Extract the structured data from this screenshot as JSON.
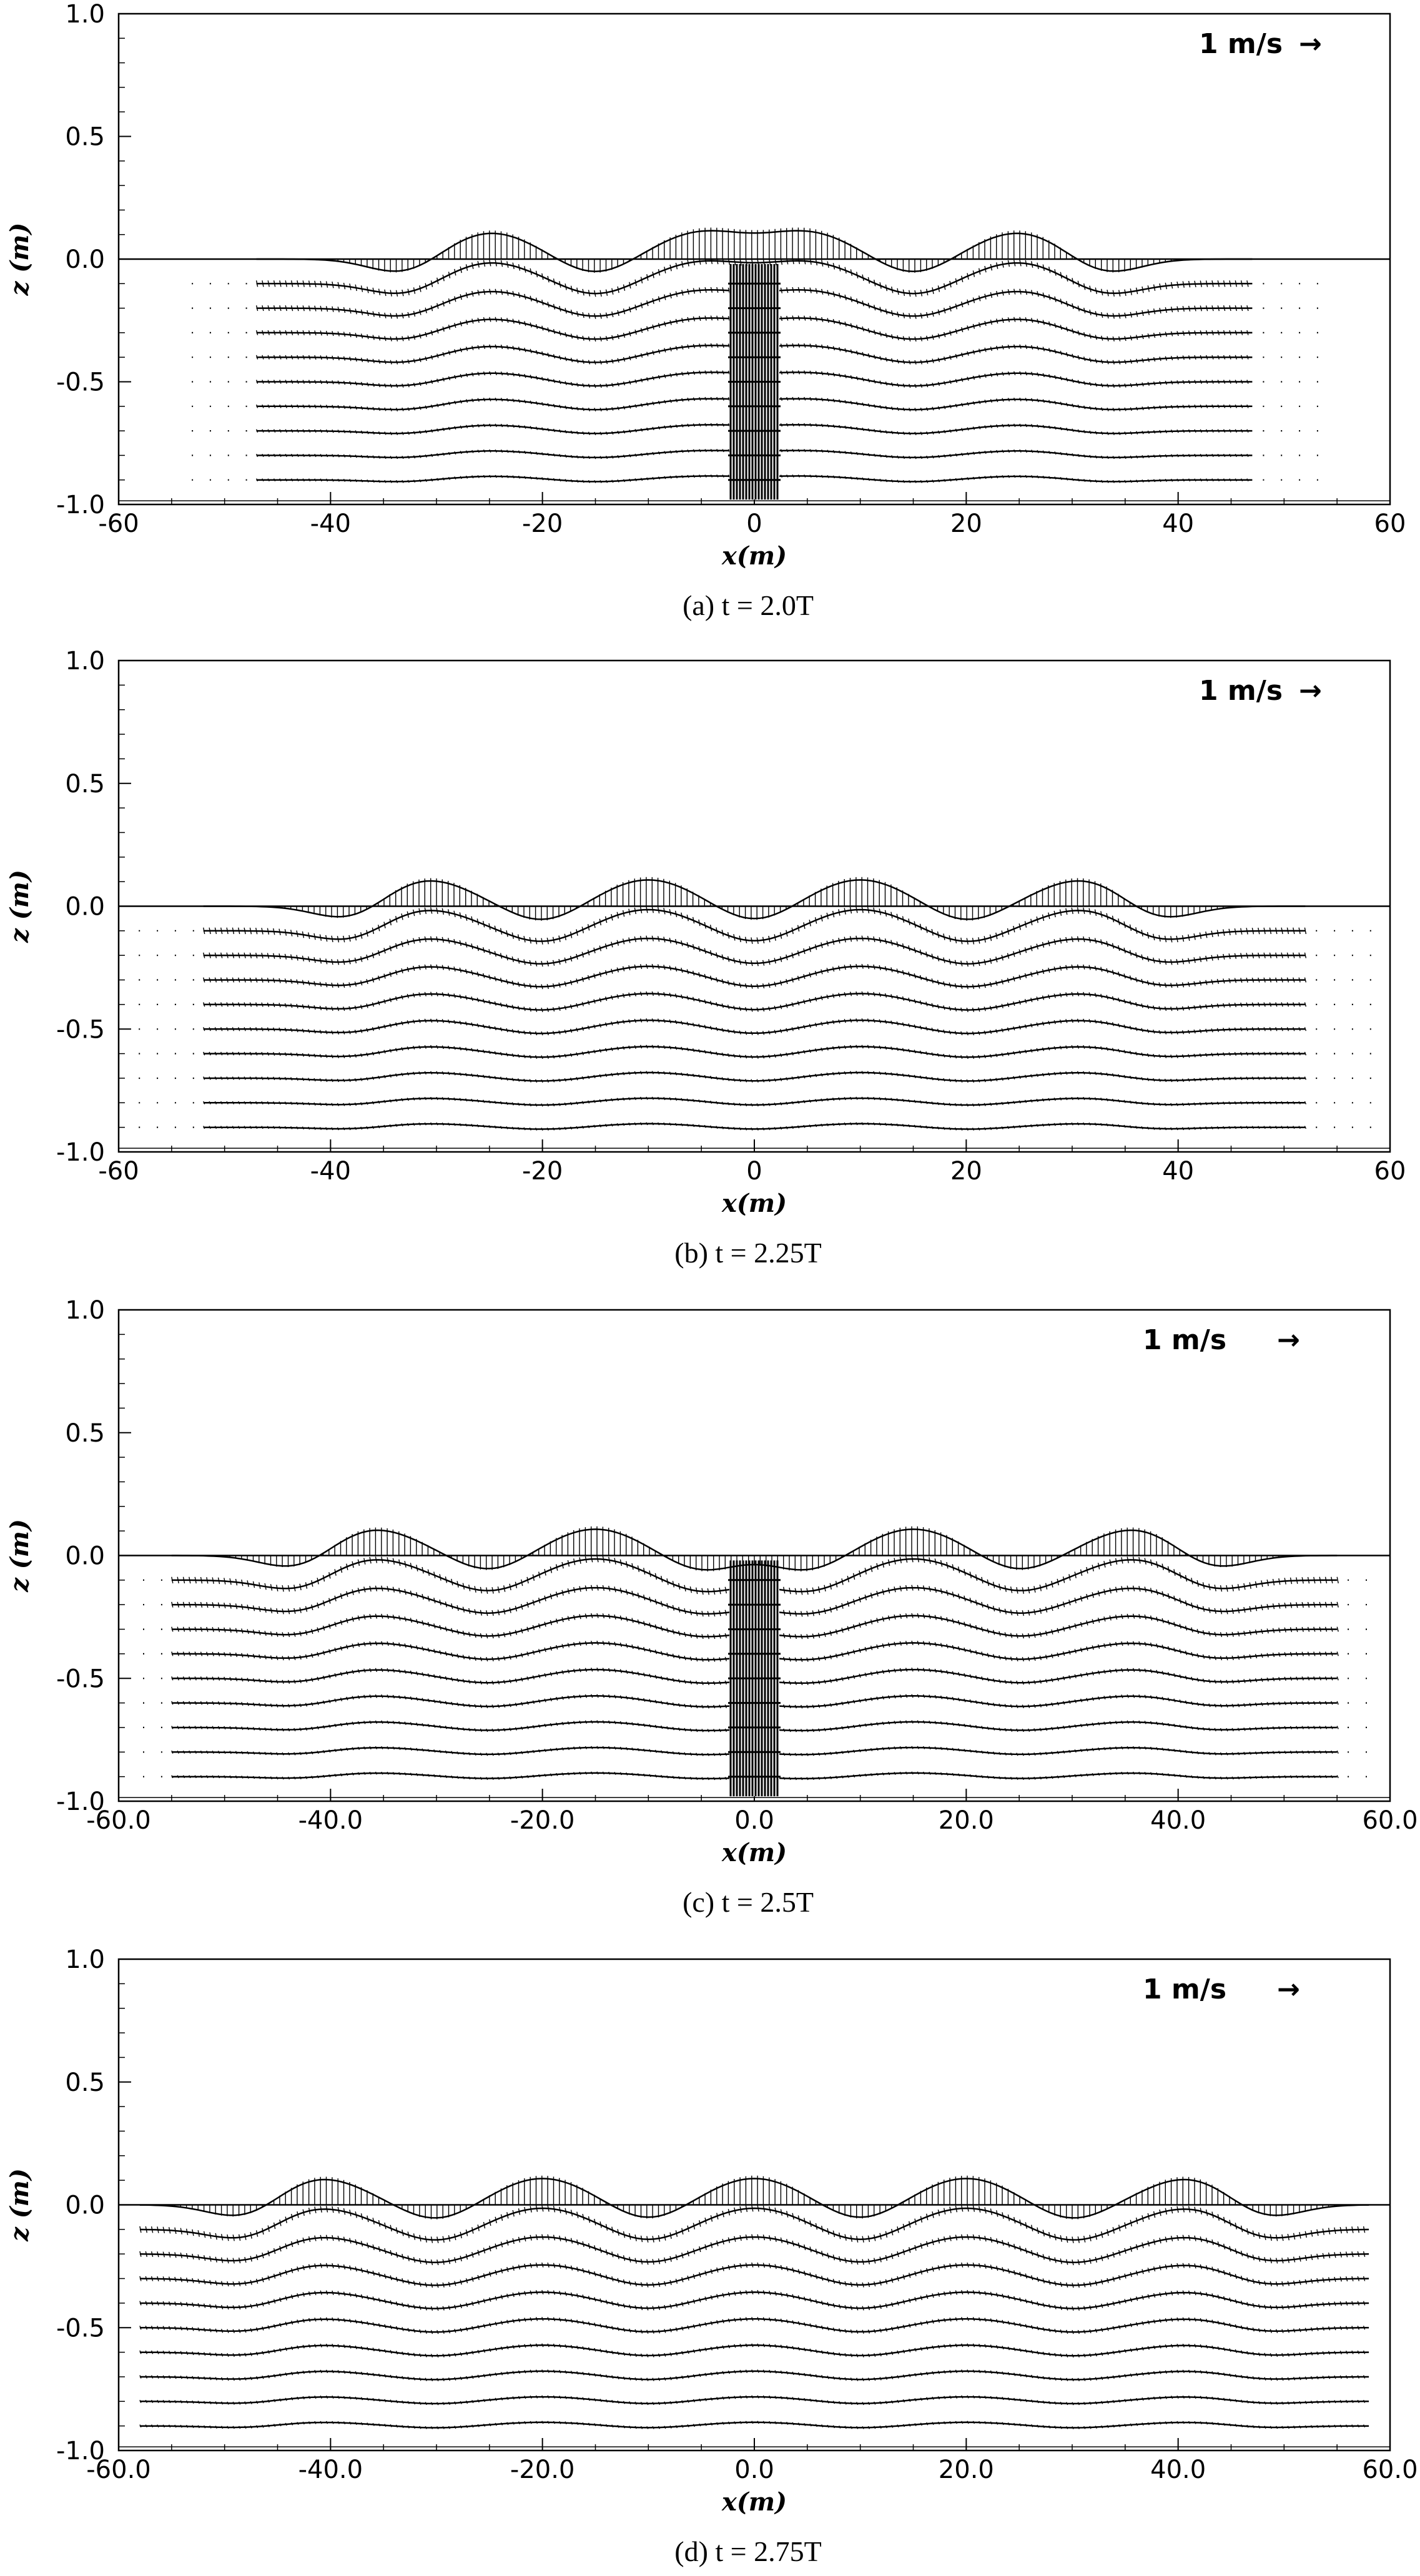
{
  "chart_data": [
    {
      "type": "scatter",
      "subplot": "vector-field",
      "caption": "(a)  t = 2.0T",
      "xlabel": "x(m)",
      "ylabel": "z (m)",
      "xlim": [
        -60,
        60
      ],
      "ylim": [
        -1.0,
        1.0
      ],
      "x_ticks": [
        "-60",
        "-40",
        "-20",
        "0",
        "20",
        "40",
        "60"
      ],
      "y_ticks": [
        "-1.0",
        "-0.5",
        "0.0",
        "0.5",
        "1.0"
      ],
      "scale_label": "1 m/s",
      "scale_arrow": "→",
      "crests_x": [
        -25,
        -5,
        5,
        25
      ],
      "troughs_x": [
        -33,
        -15,
        15,
        33
      ],
      "crest_height": 0.12,
      "wave_extent": [
        -47,
        47
      ],
      "central_jet_x": 0
    },
    {
      "type": "scatter",
      "subplot": "vector-field",
      "caption": "(b)  t = 2.25T",
      "xlabel": "x(m)",
      "ylabel": "z (m)",
      "xlim": [
        -60,
        60
      ],
      "ylim": [
        -1.0,
        1.0
      ],
      "x_ticks": [
        "-60",
        "-40",
        "-20",
        "0",
        "20",
        "40",
        "60"
      ],
      "y_ticks": [
        "-1.0",
        "-0.5",
        "0.0",
        "0.5",
        "1.0"
      ],
      "scale_label": "1 m/s",
      "scale_arrow": "→",
      "crests_x": [
        -31,
        -10,
        10,
        31
      ],
      "troughs_x": [
        -38,
        -20,
        0,
        20,
        38
      ],
      "crest_height": 0.12,
      "wave_extent": [
        -52,
        52
      ],
      "central_jet_x": null
    },
    {
      "type": "scatter",
      "subplot": "vector-field",
      "caption": "(c)  t = 2.5T",
      "xlabel": "x(m)",
      "ylabel": "z (m)",
      "xlim": [
        -60,
        60
      ],
      "ylim": [
        -1.0,
        1.0
      ],
      "x_ticks": [
        "-60.0",
        "-40.0",
        "-20.0",
        "0.0",
        "20.0",
        "40.0",
        "60.0"
      ],
      "y_ticks": [
        "-1.0",
        "-0.5",
        "0.0",
        "0.5",
        "1.0"
      ],
      "scale_label": "1 m/s",
      "scale_arrow": "→",
      "crests_x": [
        -36,
        -15,
        15,
        36
      ],
      "troughs_x": [
        -43,
        -25,
        -5,
        5,
        25,
        43
      ],
      "crest_height": 0.12,
      "wave_extent": [
        -55,
        55
      ],
      "central_jet_x": 0
    },
    {
      "type": "scatter",
      "subplot": "vector-field",
      "caption": "(d)  t = 2.75T",
      "xlabel": "x(m)",
      "ylabel": "z (m)",
      "xlim": [
        -60,
        60
      ],
      "ylim": [
        -1.0,
        1.0
      ],
      "x_ticks": [
        "-60.0",
        "-40.0",
        "-20.0",
        "0.0",
        "20.0",
        "40.0",
        "60.0"
      ],
      "y_ticks": [
        "-1.0",
        "-0.5",
        "0.0",
        "0.5",
        "1.0"
      ],
      "scale_label": "1 m/s",
      "scale_arrow": "→",
      "crests_x": [
        -41,
        -20,
        0,
        20,
        41
      ],
      "troughs_x": [
        -48,
        -30,
        -10,
        10,
        30,
        48
      ],
      "crest_height": 0.12,
      "wave_extent": [
        -58,
        58
      ],
      "central_jet_x": null
    }
  ]
}
